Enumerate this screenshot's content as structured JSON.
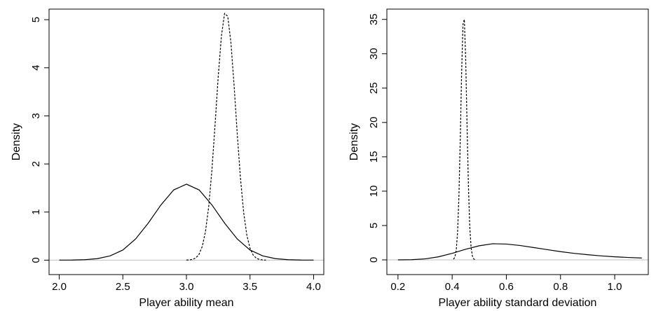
{
  "chart_data": [
    {
      "type": "line",
      "xlabel": "Player ability mean",
      "ylabel": "Density",
      "xlim": [
        1.92,
        4.08
      ],
      "ylim": [
        -0.3,
        5.22
      ],
      "xticks": [
        {
          "value": 2,
          "label": "2.0"
        },
        2.5,
        {
          "value": 3,
          "label": "3.0"
        },
        3.5,
        {
          "value": 4,
          "label": "4.0"
        }
      ],
      "yticks": [
        0,
        1,
        2,
        3,
        4,
        5
      ],
      "zero_line": "#bebebe",
      "box": true,
      "series": [
        {
          "color": "#000000",
          "linestyle": "solid",
          "x": [
            2.0,
            2.1,
            2.2,
            2.3,
            2.4,
            2.5,
            2.6,
            2.7,
            2.8,
            2.9,
            3.0,
            3.1,
            3.2,
            3.3,
            3.4,
            3.5,
            3.6,
            3.7,
            3.8,
            3.9,
            4.0
          ],
          "values": [
            0.001,
            0.002,
            0.009,
            0.031,
            0.089,
            0.21,
            0.44,
            0.77,
            1.15,
            1.46,
            1.58,
            1.46,
            1.15,
            0.77,
            0.44,
            0.21,
            0.089,
            0.031,
            0.009,
            0.002,
            0.001
          ]
        },
        {
          "color": "#000000",
          "linestyle": "dashed",
          "x": [
            3.0,
            3.025,
            3.05,
            3.075,
            3.1,
            3.125,
            3.15,
            3.175,
            3.2,
            3.225,
            3.25,
            3.275,
            3.3,
            3.325,
            3.35,
            3.375,
            3.4,
            3.425,
            3.45,
            3.475,
            3.5,
            3.525,
            3.55,
            3.575,
            3.6,
            3.625
          ],
          "values": [
            0.002,
            0.005,
            0.017,
            0.049,
            0.126,
            0.289,
            0.598,
            1.11,
            1.86,
            2.81,
            3.82,
            4.66,
            5.13,
            5.07,
            4.52,
            3.62,
            2.61,
            1.7,
            0.99,
            0.52,
            0.247,
            0.105,
            0.04,
            0.014,
            0.004,
            0.001
          ]
        }
      ]
    },
    {
      "type": "line",
      "xlabel": "Player ability standard deviation",
      "ylabel": "Density",
      "xlim": [
        0.159,
        1.124
      ],
      "ylim": [
        -2.14,
        36.5
      ],
      "xticks": [
        0.2,
        0.4,
        0.6,
        0.8,
        {
          "value": 1,
          "label": "1.0"
        }
      ],
      "yticks": [
        0,
        5,
        10,
        15,
        20,
        25,
        30,
        35
      ],
      "zero_line": "#bebebe",
      "box": true,
      "series": [
        {
          "color": "#000000",
          "linestyle": "solid",
          "x": [
            0.2,
            0.25,
            0.3,
            0.35,
            0.4,
            0.45,
            0.5,
            0.55,
            0.6,
            0.65,
            0.7,
            0.75,
            0.8,
            0.85,
            0.9,
            0.95,
            1.0,
            1.05,
            1.1
          ],
          "values": [
            0.0,
            0.03,
            0.15,
            0.45,
            0.95,
            1.55,
            2.05,
            2.35,
            2.3,
            2.1,
            1.8,
            1.5,
            1.2,
            0.95,
            0.75,
            0.58,
            0.45,
            0.35,
            0.27
          ]
        },
        {
          "color": "#000000",
          "linestyle": "dashed",
          "x": [
            0.405,
            0.41,
            0.415,
            0.42,
            0.425,
            0.43,
            0.435,
            0.44,
            0.445,
            0.45,
            0.455,
            0.46,
            0.465,
            0.47,
            0.475,
            0.48,
            0.485
          ],
          "values": [
            0.09,
            0.4,
            1.39,
            4.0,
            9.3,
            17.7,
            27.3,
            34.3,
            35.0,
            29.1,
            19.6,
            10.8,
            4.8,
            1.76,
            0.52,
            0.12,
            0.02
          ]
        }
      ]
    }
  ]
}
